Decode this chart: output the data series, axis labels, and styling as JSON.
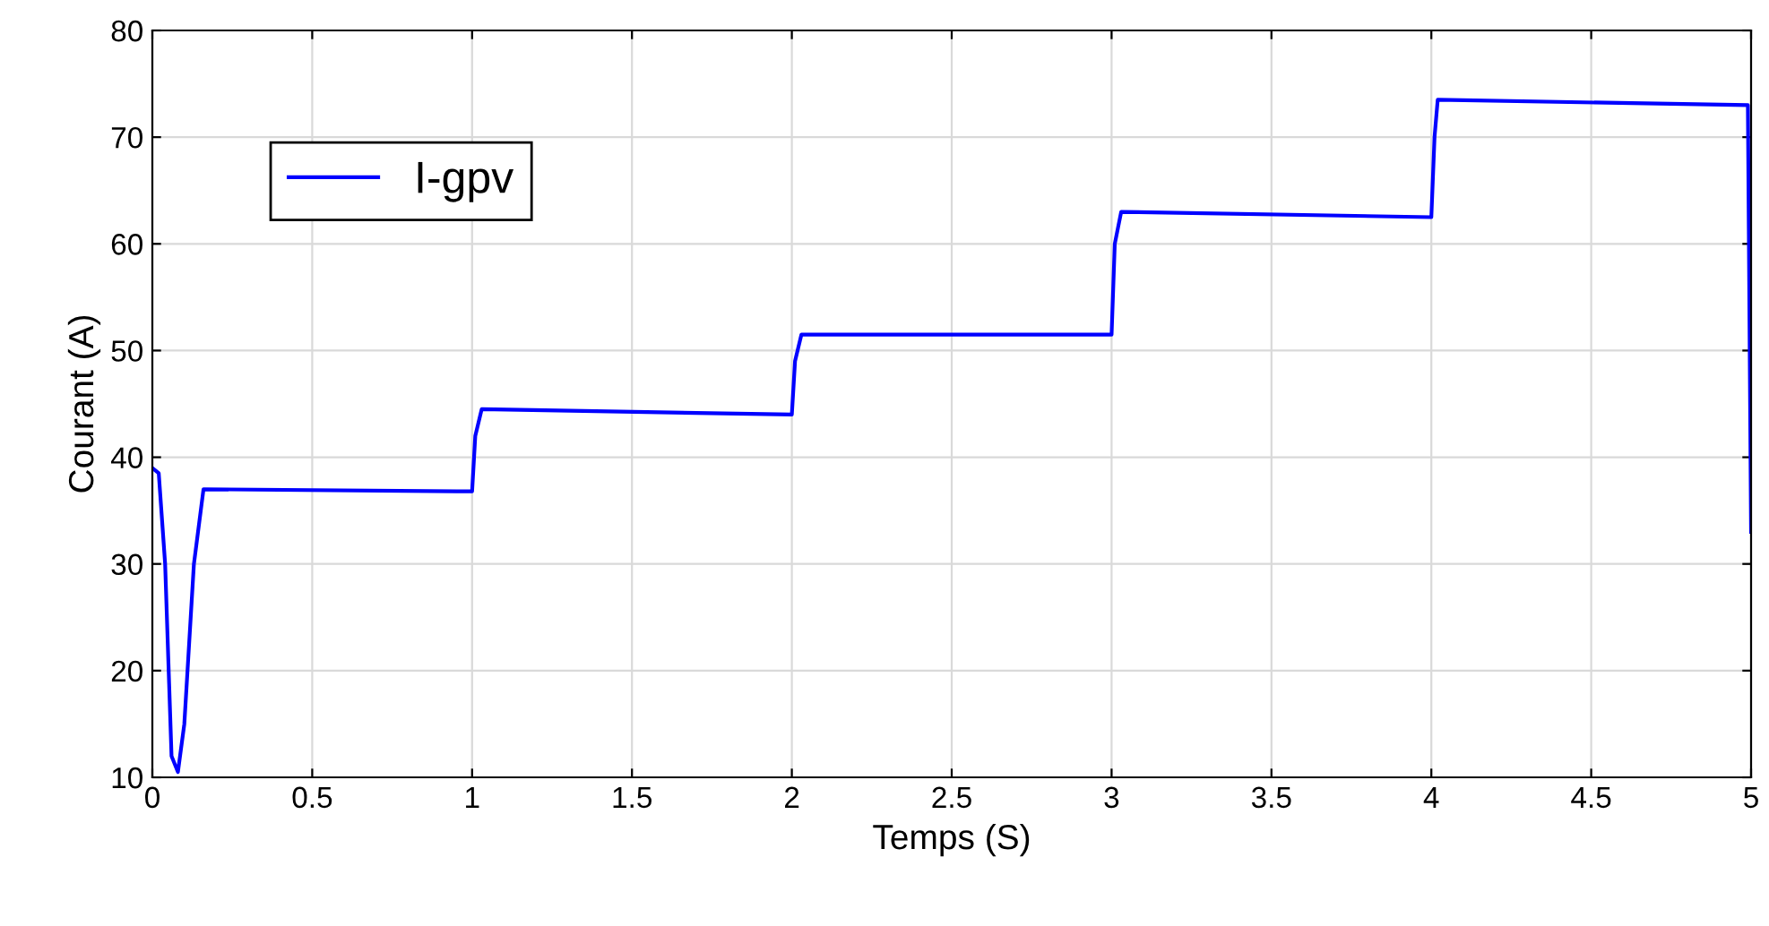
{
  "chart_data": {
    "type": "line",
    "xlabel": "Temps (S)",
    "ylabel": "Courant (A)",
    "xlim": [
      0,
      5
    ],
    "xticks": [
      0,
      0.5,
      1,
      1.5,
      2,
      2.5,
      3,
      3.5,
      4,
      4.5,
      5
    ],
    "ylim": [
      10,
      80
    ],
    "yticks": [
      10,
      20,
      30,
      40,
      50,
      60,
      70,
      80
    ],
    "grid": true,
    "legend": "top left",
    "series": [
      {
        "name": "I-gpv",
        "color": "#0000ff",
        "x": [
          0,
          0.02,
          0.04,
          0.06,
          0.08,
          0.1,
          0.13,
          0.16,
          1.0,
          1.01,
          1.03,
          2.0,
          2.01,
          2.03,
          3.0,
          3.01,
          3.03,
          4.0,
          4.01,
          4.02,
          4.99,
          5.0
        ],
        "values": [
          39,
          38.5,
          30,
          12,
          10.5,
          15,
          30,
          37,
          36.8,
          42,
          44.5,
          44,
          49,
          51.5,
          51.5,
          60,
          63,
          62.5,
          70,
          73.5,
          73,
          33
        ]
      }
    ]
  }
}
